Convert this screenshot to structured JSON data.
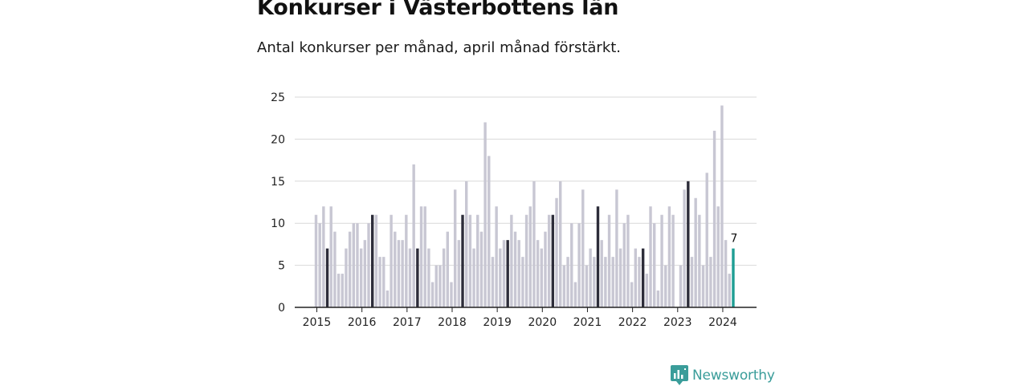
{
  "title": "Konkurser i Västerbottens län",
  "subtitle": "Antal konkurser per månad, april månad förstärkt.",
  "brand": {
    "name": "Newsworthy",
    "icon": "bar-chart-speech-bubble-icon",
    "color": "#3a9d9a"
  },
  "colors": {
    "bar": "#c8c7d3",
    "april": "#2d2d3a",
    "latest": "#1f9e94",
    "grid": "#d9d9d9",
    "axis": "#222222"
  },
  "chart_data": {
    "type": "bar",
    "x_tick_labels": [
      "2015",
      "2016",
      "2017",
      "2018",
      "2019",
      "2020",
      "2021",
      "2022",
      "2023",
      "2024"
    ],
    "y_ticks": [
      0,
      5,
      10,
      15,
      20,
      25
    ],
    "ylim": [
      0,
      25
    ],
    "grid": true,
    "highlight": "April of each year shown in dark; latest month (April 2024) in teal with value label",
    "series": [
      {
        "year": 2015,
        "values": [
          11,
          10,
          12,
          7,
          12,
          9,
          4,
          4,
          7,
          9,
          10,
          10
        ]
      },
      {
        "year": 2016,
        "values": [
          7,
          8,
          10,
          11,
          11,
          6,
          6,
          2,
          11,
          9,
          8,
          8
        ]
      },
      {
        "year": 2017,
        "values": [
          11,
          7,
          17,
          7,
          12,
          12,
          7,
          3,
          5,
          5,
          7,
          9
        ]
      },
      {
        "year": 2018,
        "values": [
          3,
          14,
          8,
          11,
          15,
          11,
          7,
          11,
          9,
          22,
          18,
          6
        ]
      },
      {
        "year": 2019,
        "values": [
          12,
          7,
          8,
          8,
          11,
          9,
          8,
          6,
          11,
          12,
          15,
          8
        ]
      },
      {
        "year": 2020,
        "values": [
          7,
          9,
          11,
          11,
          13,
          15,
          5,
          6,
          10,
          3,
          10,
          14
        ]
      },
      {
        "year": 2021,
        "values": [
          5,
          7,
          6,
          12,
          8,
          6,
          11,
          6,
          14,
          7,
          10,
          11
        ]
      },
      {
        "year": 2022,
        "values": [
          3,
          7,
          6,
          7,
          4,
          12,
          10,
          2,
          11,
          5,
          12,
          11
        ]
      },
      {
        "year": 2023,
        "values": [
          0,
          5,
          14,
          15,
          6,
          13,
          11,
          5,
          16,
          6,
          21,
          12
        ]
      },
      {
        "year": 2024,
        "values": [
          24,
          8,
          4,
          7
        ]
      }
    ],
    "latest_value_label": "7"
  }
}
